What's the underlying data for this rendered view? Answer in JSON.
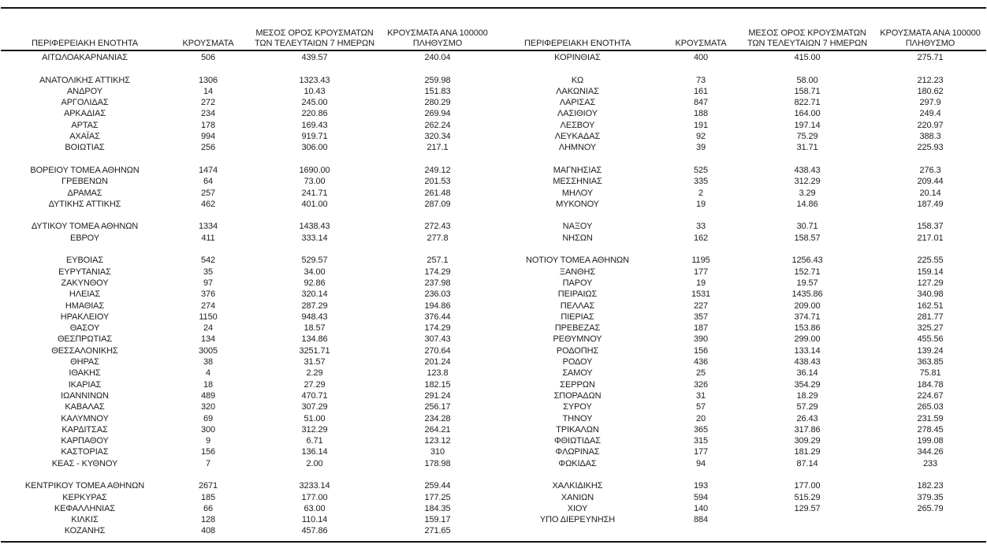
{
  "page": {
    "background": "#ffffff",
    "text_color": "#1c1c1c",
    "rule_color": "#151515"
  },
  "table": {
    "headers": {
      "region": "ΠΕΡΙΦΕΡΕΙΑΚΗ ΕΝΟΤΗΤΑ",
      "cases": "ΚΡΟΥΣΜΑΤΑ",
      "avg7": "ΜΕΣΟΣ ΟΡΟΣ ΚΡΟΥΣΜΑΤΩΝ ΤΩΝ ΤΕΛΕΥΤΑΙΩΝ 7 ΗΜΕΡΩΝ",
      "per100k": "ΚΡΟΥΣΜΑΤΑ ΑΝΑ 100000 ΠΛΗΘΥΣΜΟ"
    },
    "rows": [
      [
        "ΑΙΤΩΛΟΑΚΑΡΝΑΝΙΑΣ",
        "506",
        "439.57",
        "240.04",
        "ΚΟΡΙΝΘΙΑΣ",
        "400",
        "415.00",
        "275.71"
      ],
      [
        "",
        "",
        "",
        "",
        "",
        "",
        "",
        ""
      ],
      [
        "ΑΝΑΤΟΛΙΚΗΣ ΑΤΤΙΚΗΣ",
        "1306",
        "1323.43",
        "259.98",
        "ΚΩ",
        "73",
        "58.00",
        "212.23"
      ],
      [
        "ΑΝΔΡΟΥ",
        "14",
        "10.43",
        "151.83",
        "ΛΑΚΩΝΙΑΣ",
        "161",
        "158.71",
        "180.62"
      ],
      [
        "ΑΡΓΟΛΙΔΑΣ",
        "272",
        "245.00",
        "280.29",
        "ΛΑΡΙΣΑΣ",
        "847",
        "822.71",
        "297.9"
      ],
      [
        "ΑΡΚΑΔΙΑΣ",
        "234",
        "220.86",
        "269.94",
        "ΛΑΣΙΘΙΟΥ",
        "188",
        "164.00",
        "249.4"
      ],
      [
        "ΑΡΤΑΣ",
        "178",
        "169.43",
        "262.24",
        "ΛΕΣΒΟΥ",
        "191",
        "197.14",
        "220.97"
      ],
      [
        "ΑΧΑΪΑΣ",
        "994",
        "919.71",
        "320.34",
        "ΛΕΥΚΑΔΑΣ",
        "92",
        "75.29",
        "388.3"
      ],
      [
        "ΒΟΙΩΤΙΑΣ",
        "256",
        "306.00",
        "217.1",
        "ΛΗΜΝΟΥ",
        "39",
        "31.71",
        "225.93"
      ],
      [
        "",
        "",
        "",
        "",
        "",
        "",
        "",
        ""
      ],
      [
        "ΒΟΡΕΙΟΥ ΤΟΜΕΑ ΑΘΗΝΩΝ",
        "1474",
        "1690.00",
        "249.12",
        "ΜΑΓΝΗΣΙΑΣ",
        "525",
        "438.43",
        "276.3"
      ],
      [
        "ΓΡΕΒΕΝΩΝ",
        "64",
        "73.00",
        "201.53",
        "ΜΕΣΣΗΝΙΑΣ",
        "335",
        "312.29",
        "209.44"
      ],
      [
        "ΔΡΑΜΑΣ",
        "257",
        "241.71",
        "261.48",
        "ΜΗΛΟΥ",
        "2",
        "3.29",
        "20.14"
      ],
      [
        "ΔΥΤΙΚΗΣ ΑΤΤΙΚΗΣ",
        "462",
        "401.00",
        "287.09",
        "ΜΥΚΟΝΟΥ",
        "19",
        "14.86",
        "187.49"
      ],
      [
        "",
        "",
        "",
        "",
        "",
        "",
        "",
        ""
      ],
      [
        "ΔΥΤΙΚΟΥ ΤΟΜΕΑ ΑΘΗΝΩΝ",
        "1334",
        "1438.43",
        "272.43",
        "ΝΑΞΟΥ",
        "33",
        "30.71",
        "158.37"
      ],
      [
        "ΕΒΡΟΥ",
        "411",
        "333.14",
        "277.8",
        "ΝΗΣΩΝ",
        "162",
        "158.57",
        "217.01"
      ],
      [
        "",
        "",
        "",
        "",
        "",
        "",
        "",
        ""
      ],
      [
        "ΕΥΒΟΙΑΣ",
        "542",
        "529.57",
        "257.1",
        "ΝΟΤΙΟΥ ΤΟΜΕΑ ΑΘΗΝΩΝ",
        "1195",
        "1256.43",
        "225.55"
      ],
      [
        "ΕΥΡΥΤΑΝΙΑΣ",
        "35",
        "34.00",
        "174.29",
        "ΞΑΝΘΗΣ",
        "177",
        "152.71",
        "159.14"
      ],
      [
        "ΖΑΚΥΝΘΟΥ",
        "97",
        "92.86",
        "237.98",
        "ΠΑΡΟΥ",
        "19",
        "19.57",
        "127.29"
      ],
      [
        "ΗΛΕΙΑΣ",
        "376",
        "320.14",
        "236.03",
        "ΠΕΙΡΑΙΩΣ",
        "1531",
        "1435.86",
        "340.98"
      ],
      [
        "ΗΜΑΘΙΑΣ",
        "274",
        "287.29",
        "194.86",
        "ΠΕΛΛΑΣ",
        "227",
        "209.00",
        "162.51"
      ],
      [
        "ΗΡΑΚΛΕΙΟΥ",
        "1150",
        "948.43",
        "376.44",
        "ΠΙΕΡΙΑΣ",
        "357",
        "374.71",
        "281.77"
      ],
      [
        "ΘΑΣΟΥ",
        "24",
        "18.57",
        "174.29",
        "ΠΡΕΒΕΖΑΣ",
        "187",
        "153.86",
        "325.27"
      ],
      [
        "ΘΕΣΠΡΩΤΙΑΣ",
        "134",
        "134.86",
        "307.43",
        "ΡΕΘΥΜΝΟΥ",
        "390",
        "299.00",
        "455.56"
      ],
      [
        "ΘΕΣΣΑΛΟΝΙΚΗΣ",
        "3005",
        "3251.71",
        "270.64",
        "ΡΟΔΟΠΗΣ",
        "156",
        "133.14",
        "139.24"
      ],
      [
        "ΘΗΡΑΣ",
        "38",
        "31.57",
        "201.24",
        "ΡΟΔΟΥ",
        "436",
        "438.43",
        "363.85"
      ],
      [
        "ΙΘΑΚΗΣ",
        "4",
        "2.29",
        "123.8",
        "ΣΑΜΟΥ",
        "25",
        "36.14",
        "75.81"
      ],
      [
        "ΙΚΑΡΙΑΣ",
        "18",
        "27.29",
        "182.15",
        "ΣΕΡΡΩΝ",
        "326",
        "354.29",
        "184.78"
      ],
      [
        "ΙΩΑΝΝΙΝΩΝ",
        "489",
        "470.71",
        "291.24",
        "ΣΠΟΡΑΔΩΝ",
        "31",
        "18.29",
        "224.67"
      ],
      [
        "ΚΑΒΑΛΑΣ",
        "320",
        "307.29",
        "256.17",
        "ΣΥΡΟΥ",
        "57",
        "57.29",
        "265.03"
      ],
      [
        "ΚΑΛΥΜΝΟΥ",
        "69",
        "51.00",
        "234.28",
        "ΤΗΝΟΥ",
        "20",
        "26.43",
        "231.59"
      ],
      [
        "ΚΑΡΔΙΤΣΑΣ",
        "300",
        "312.29",
        "264.21",
        "ΤΡΙΚΑΛΩΝ",
        "365",
        "317.86",
        "278.45"
      ],
      [
        "ΚΑΡΠΑΘΟΥ",
        "9",
        "6.71",
        "123.12",
        "ΦΘΙΩΤΙΔΑΣ",
        "315",
        "309.29",
        "199.08"
      ],
      [
        "ΚΑΣΤΟΡΙΑΣ",
        "156",
        "136.14",
        "310",
        "ΦΛΩΡΙΝΑΣ",
        "177",
        "181.29",
        "344.26"
      ],
      [
        "ΚΕΑΣ - ΚΥΘΝΟΥ",
        "7",
        "2.00",
        "178.98",
        "ΦΩΚΙΔΑΣ",
        "94",
        "87.14",
        "233"
      ],
      [
        "",
        "",
        "",
        "",
        "",
        "",
        "",
        ""
      ],
      [
        "ΚΕΝΤΡΙΚΟΥ ΤΟΜΕΑ ΑΘΗΝΩΝ",
        "2671",
        "3233.14",
        "259.44",
        "ΧΑΛΚΙΔΙΚΗΣ",
        "193",
        "177.00",
        "182.23"
      ],
      [
        "ΚΕΡΚΥΡΑΣ",
        "185",
        "177.00",
        "177.25",
        "ΧΑΝΙΩΝ",
        "594",
        "515.29",
        "379.35"
      ],
      [
        "ΚΕΦΑΛΛΗΝΙΑΣ",
        "66",
        "63.00",
        "184.35",
        "ΧΙΟΥ",
        "140",
        "129.57",
        "265.79"
      ],
      [
        "ΚΙΛΚΙΣ",
        "128",
        "110.14",
        "159.17",
        "ΥΠΟ ΔΙΕΡΕΥΝΗΣΗ",
        "884",
        "",
        ""
      ],
      [
        "ΚΟΖΑΝΗΣ",
        "408",
        "457.86",
        "271.65",
        "",
        "",
        "",
        ""
      ]
    ]
  }
}
